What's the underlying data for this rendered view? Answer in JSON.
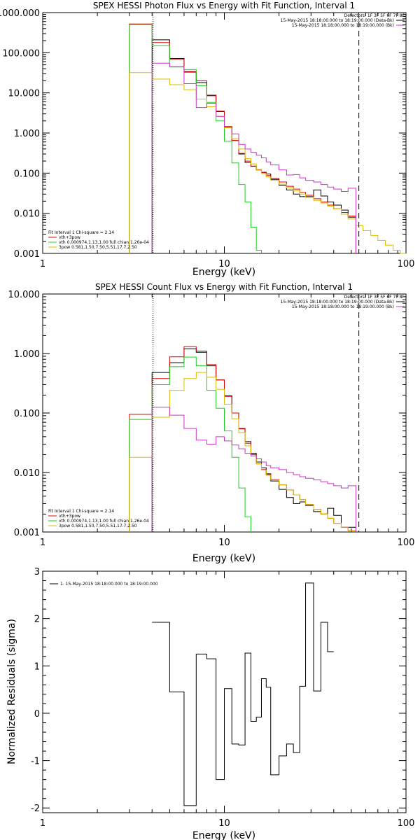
{
  "chart_data": [
    {
      "type": "line",
      "title": "SPEX HESSI Photon Flux vs Energy with Fit Function, Interval 1",
      "xlabel": "Energy (keV)",
      "ylabel": "",
      "xscale": "log",
      "yscale": "log",
      "xlim": [
        1,
        100
      ],
      "ylim": [
        0.001,
        1000
      ],
      "x_tick_labels": [
        "1",
        "10",
        "100"
      ],
      "y_tick_labels": [
        "0.001",
        "0.010",
        "0.100",
        "1.000",
        "10.000",
        "100.000",
        "1000.000"
      ],
      "legend_top": {
        "placement": "top-right",
        "header": "Detectors: 1F 3F 5F 6F 7F 8F",
        "entries": [
          {
            "text": "15-May-2015 18:18:00.000 to 18:19:00.000 (Data-Bk)",
            "color": "#000000"
          },
          {
            "text": "15-May-2015 18:18:00.000 to 18:19:00.000 (Bk)",
            "color": "#cc33cc"
          }
        ]
      },
      "legend_bottom": {
        "placement": "bottom-left",
        "header": "Fit Interval  1    Chi-square = 2.14",
        "entries": [
          {
            "text": "vth+3pow",
            "color": "#dd0000"
          },
          {
            "text": "vth 0.000974,1.13,1.00  full chian 1.26e-04",
            "color": "#22cc22"
          },
          {
            "text": "3pow 0.581,1.50,7.50,5.51,17.7,2.50",
            "color": "#ddbb00"
          }
        ]
      },
      "markers": {
        "fit_start_dotted": 4.05,
        "fit_end_dashed": 55
      },
      "edges": [
        3,
        4,
        5,
        6,
        7,
        8,
        9,
        10,
        11,
        12,
        13,
        14,
        15,
        16,
        17,
        18,
        20,
        22,
        24,
        26,
        28,
        31,
        34,
        37,
        40,
        44,
        48,
        53,
        58,
        64,
        70,
        77,
        85,
        93,
        100
      ],
      "series": [
        {
          "name": "Data-Bk",
          "color": "#000000",
          "values": [
            null,
            210,
            72,
            33,
            18,
            8.5,
            3.4,
            1.4,
            0.65,
            0.3,
            0.185,
            0.148,
            0.12,
            0.105,
            0.095,
            0.07,
            0.05,
            0.038,
            0.03,
            0.026,
            0.026,
            0.038,
            0.027,
            0.019,
            0.016,
            0.012,
            0.008,
            null,
            null,
            null,
            null,
            null,
            null,
            null
          ]
        },
        {
          "name": "vth+3pow",
          "color": "#dd0000",
          "values": [
            520,
            180,
            68,
            34,
            20,
            8.8,
            3.5,
            1.45,
            0.65,
            0.31,
            0.2,
            0.15,
            0.122,
            0.103,
            0.087,
            0.073,
            0.06,
            0.047,
            0.04,
            0.033,
            0.028,
            0.023,
            0.019,
            0.016,
            0.013,
            0.0105,
            0.0085,
            null,
            null,
            null,
            null,
            null,
            null,
            null
          ]
        },
        {
          "name": "vth",
          "color": "#22cc22",
          "values": [
            500,
            150,
            44,
            38,
            15,
            5.8,
            2.0,
            0.62,
            0.18,
            0.052,
            0.019,
            0.0045,
            0.0012,
            null,
            null,
            null,
            null,
            null,
            null,
            null,
            null,
            null,
            null,
            null,
            null,
            null,
            null,
            null,
            null,
            null,
            null,
            null,
            null,
            null
          ]
        },
        {
          "name": "3pow",
          "color": "#ddbb00",
          "values": [
            32,
            22,
            16,
            12,
            7.0,
            4.5,
            2.6,
            1.35,
            0.72,
            0.4,
            0.23,
            0.17,
            0.12,
            0.098,
            0.08,
            0.066,
            0.053,
            0.043,
            0.036,
            0.03,
            0.025,
            0.021,
            0.018,
            0.015,
            0.013,
            0.0095,
            0.0072,
            0.0049,
            0.0037,
            0.0028,
            0.0021,
            0.0016,
            0.0012,
            0.001
          ]
        },
        {
          "name": "Bk",
          "color": "#cc33cc",
          "values": [
            null,
            55,
            45,
            17,
            4.3,
            5.5,
            2.6,
            1.4,
            0.95,
            0.52,
            0.4,
            0.33,
            0.28,
            0.24,
            0.19,
            0.16,
            0.12,
            0.09,
            0.092,
            0.076,
            0.066,
            0.06,
            0.052,
            0.045,
            0.04,
            0.035,
            0.042,
            null,
            null,
            null,
            null,
            null,
            null,
            null
          ]
        }
      ]
    },
    {
      "type": "line",
      "title": "SPEX HESSI Count Flux vs Energy with Fit Function, Interval 1",
      "xlabel": "Energy (keV)",
      "ylabel": "",
      "xscale": "log",
      "yscale": "log",
      "xlim": [
        1,
        100
      ],
      "ylim": [
        0.001,
        10
      ],
      "x_tick_labels": [
        "1",
        "10",
        "100"
      ],
      "y_tick_labels": [
        "0.001",
        "0.010",
        "0.100",
        "1.000",
        "10.000"
      ],
      "legend_top": {
        "placement": "top-right",
        "header": "Detectors: 1F 3F 5F 6F 7F 8F",
        "entries": [
          {
            "text": "15-May-2015 18:18:00.000 to 18:19:00.000 (Data-Bk)",
            "color": "#000000"
          },
          {
            "text": "15-May-2015 18:18:00.000 to 18:19:00.000 (Bk)",
            "color": "#cc33cc"
          }
        ]
      },
      "legend_bottom": {
        "placement": "bottom-left",
        "header": "Fit Interval  1    Chi-square = 2.14",
        "entries": [
          {
            "text": "vth+3pow",
            "color": "#dd0000"
          },
          {
            "text": "vth 0.000974,1.13,1.00  full chian 1.26e-04",
            "color": "#22cc22"
          },
          {
            "text": "3pow 0.581,1.50,7.50,5.51,17.7,2.50",
            "color": "#ddbb00"
          }
        ]
      },
      "markers": {
        "fit_start_dotted": 4.05,
        "fit_end_dashed": 55
      },
      "edges": [
        3,
        4,
        5,
        6,
        7,
        8,
        9,
        10,
        11,
        12,
        13,
        14,
        15,
        16,
        17,
        18,
        20,
        22,
        24,
        26,
        28,
        31,
        34,
        37,
        40,
        44,
        48,
        53,
        58,
        64,
        70,
        77,
        85,
        93,
        100
      ],
      "series": [
        {
          "name": "Data-Bk",
          "color": "#000000",
          "values": [
            null,
            0.48,
            0.7,
            1.2,
            1.05,
            0.62,
            0.36,
            0.195,
            0.1,
            0.055,
            0.033,
            0.021,
            0.015,
            0.012,
            0.0095,
            0.0072,
            0.0052,
            0.0038,
            0.003,
            0.0032,
            0.0028,
            0.0022,
            0.002,
            0.0025,
            0.0019,
            0.0012,
            0.0012,
            null,
            null,
            null,
            null,
            null,
            null,
            null
          ]
        },
        {
          "name": "vth+3pow",
          "color": "#dd0000",
          "values": [
            0.095,
            0.38,
            0.88,
            1.3,
            1.1,
            0.65,
            0.36,
            0.19,
            0.1,
            0.054,
            0.031,
            0.02,
            0.014,
            0.0112,
            0.0092,
            0.0076,
            0.0062,
            0.0051,
            0.0042,
            0.0035,
            0.0029,
            0.0024,
            0.002,
            0.0017,
            0.0014,
            0.0012,
            0.00105,
            null,
            null,
            null,
            null,
            null,
            null,
            null
          ]
        },
        {
          "name": "vth",
          "color": "#22cc22",
          "values": [
            0.078,
            0.3,
            0.6,
            0.87,
            0.62,
            0.24,
            0.12,
            0.05,
            0.018,
            0.0055,
            0.0018,
            null,
            null,
            null,
            null,
            null,
            null,
            null,
            null,
            null,
            null,
            null,
            null,
            null,
            null,
            null,
            null,
            null,
            null,
            null,
            null,
            null,
            null,
            null
          ]
        },
        {
          "name": "3pow",
          "color": "#ddbb00",
          "values": [
            0.018,
            0.085,
            0.24,
            0.38,
            0.48,
            0.4,
            0.25,
            0.14,
            0.08,
            0.047,
            0.028,
            0.019,
            0.014,
            0.011,
            0.009,
            0.0075,
            0.0062,
            0.0051,
            0.0042,
            0.0035,
            0.0029,
            0.0024,
            0.002,
            0.0017,
            0.0014,
            0.0012,
            0.00105,
            null,
            null,
            null,
            null,
            null,
            null,
            null
          ]
        },
        {
          "name": "Bk",
          "color": "#cc33cc",
          "values": [
            null,
            0.125,
            0.092,
            0.055,
            0.035,
            0.03,
            0.04,
            0.034,
            0.029,
            0.025,
            0.021,
            0.019,
            0.017,
            0.015,
            0.013,
            0.012,
            0.0112,
            0.01,
            0.0092,
            0.0085,
            0.008,
            0.0075,
            0.007,
            0.0065,
            0.006,
            0.0055,
            0.006,
            null,
            null,
            null,
            null,
            null,
            null,
            null
          ]
        }
      ]
    },
    {
      "type": "line",
      "title": "",
      "xlabel": "Energy (keV)",
      "ylabel": "Normalized Residuals (sigma)",
      "xscale": "log",
      "yscale": "linear",
      "xlim": [
        1,
        100
      ],
      "ylim": [
        -2.1,
        3
      ],
      "x_tick_labels": [
        "1",
        "10",
        "100"
      ],
      "y_tick_labels": [
        "-2",
        "-1",
        "0",
        "1",
        "2",
        "3"
      ],
      "legend_top": {
        "placement": "top-left",
        "header": "",
        "entries": [
          {
            "text": "1. 15-May-2015 18:18:00.000 to 18:19:00.000",
            "color": "#000000"
          }
        ]
      },
      "edges": [
        4,
        5,
        6,
        7,
        8,
        9,
        10,
        11,
        12,
        13,
        14,
        15,
        16,
        17,
        18,
        20,
        22,
        24,
        26,
        28,
        31,
        34,
        37,
        40,
        44,
        48,
        53,
        58
      ],
      "series": [
        {
          "name": "",
          "color": "#000000",
          "values": [
            1.92,
            0.45,
            -1.95,
            1.25,
            1.15,
            -1.4,
            0.52,
            -0.65,
            -0.67,
            1.27,
            -0.17,
            -0.08,
            0.73,
            0.55,
            -1.3,
            -0.9,
            -0.65,
            -0.83,
            0.57,
            2.75,
            0.47,
            1.92,
            1.3
          ]
        }
      ]
    }
  ]
}
